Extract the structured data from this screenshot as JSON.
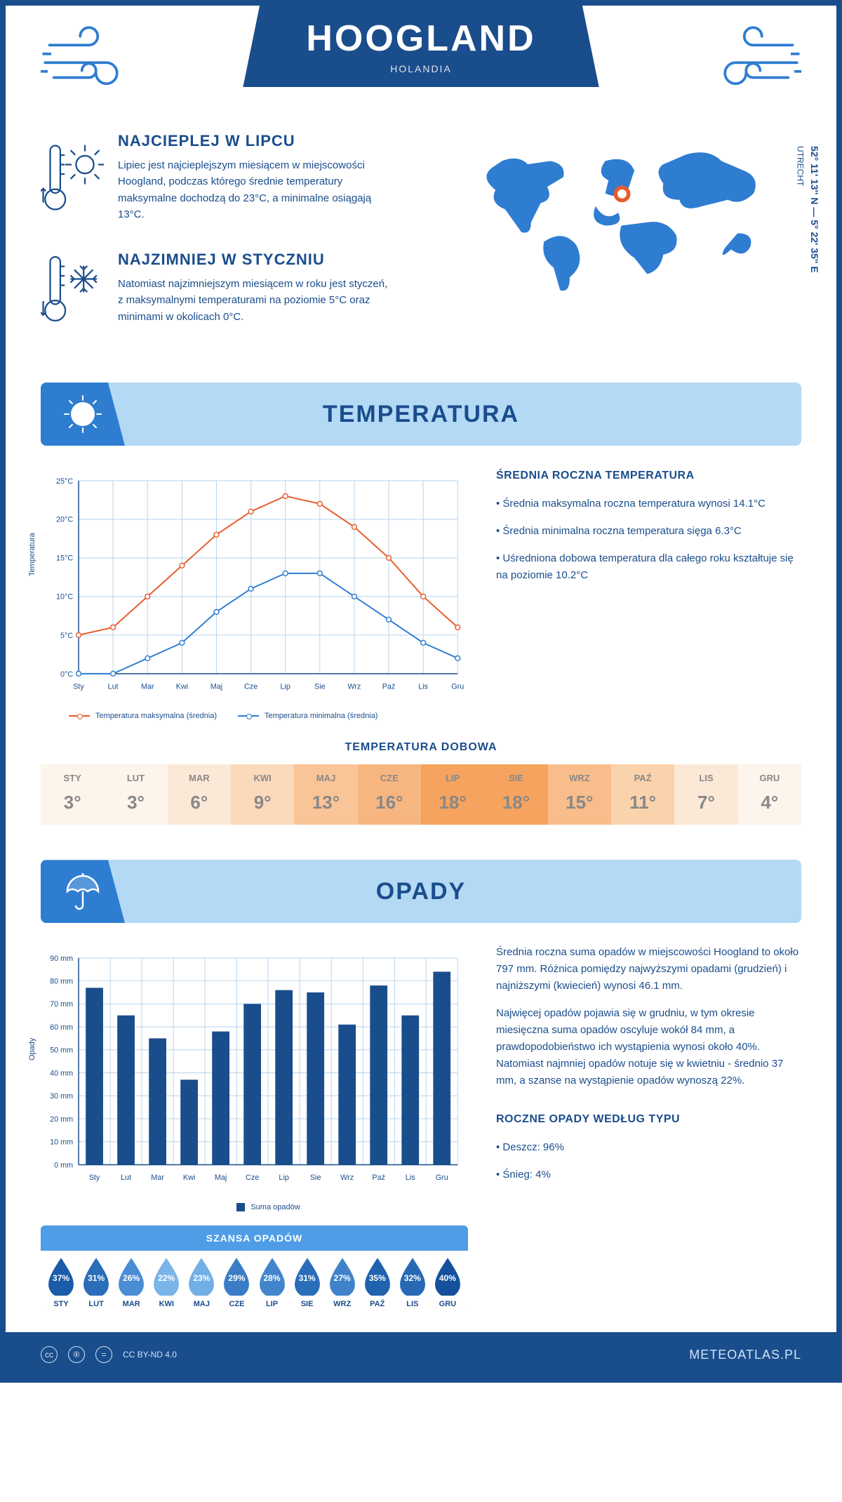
{
  "header": {
    "city": "HOOGLAND",
    "country": "HOLANDIA"
  },
  "coords": {
    "lat": "52° 11' 13'' N — 5° 22' 35'' E",
    "region": "UTRECHT"
  },
  "facts": {
    "hot": {
      "title": "NAJCIEPLEJ W LIPCU",
      "text": "Lipiec jest najcieplejszym miesiącem w miejscowości Hoogland, podczas którego średnie temperatury maksymalne dochodzą do 23°C, a minimalne osiągają 13°C."
    },
    "cold": {
      "title": "NAJZIMNIEJ W STYCZNIU",
      "text": "Natomiast najzimniejszym miesiącem w roku jest styczeń, z maksymalnymi temperaturami na poziomie 5°C oraz minimami w okolicach 0°C."
    }
  },
  "temp_section": {
    "title": "TEMPERATURA",
    "chart": {
      "months": [
        "Sty",
        "Lut",
        "Mar",
        "Kwi",
        "Maj",
        "Cze",
        "Lip",
        "Sie",
        "Wrz",
        "Paź",
        "Lis",
        "Gru"
      ],
      "max": [
        5,
        6,
        10,
        14,
        18,
        21,
        23,
        22,
        19,
        15,
        10,
        6
      ],
      "min": [
        0,
        0,
        2,
        4,
        8,
        11,
        13,
        13,
        10,
        7,
        4,
        2
      ],
      "ylim": [
        0,
        25
      ],
      "ystep": 5,
      "max_color": "#e85c2c",
      "min_color": "#2e7dd1",
      "grid_color": "#b8d4ec",
      "axis_color": "#1a4d8c",
      "ylabel": "Temperatura",
      "legend_max": "Temperatura maksymalna (średnia)",
      "legend_min": "Temperatura minimalna (średnia)"
    },
    "side_title": "ŚREDNIA ROCZNA TEMPERATURA",
    "bullets": [
      "Średnia maksymalna roczna temperatura wynosi 14.1°C",
      "Średnia minimalna roczna temperatura sięga 6.3°C",
      "Uśredniona dobowa temperatura dla całego roku kształtuje się na poziomie 10.2°C"
    ],
    "daily": {
      "title": "TEMPERATURA DOBOWA",
      "months": [
        "STY",
        "LUT",
        "MAR",
        "KWI",
        "MAJ",
        "CZE",
        "LIP",
        "SIE",
        "WRZ",
        "PAŹ",
        "LIS",
        "GRU"
      ],
      "values": [
        "3°",
        "3°",
        "6°",
        "9°",
        "13°",
        "16°",
        "18°",
        "18°",
        "15°",
        "11°",
        "7°",
        "4°"
      ],
      "colors": [
        "#fdf4eb",
        "#fdf4eb",
        "#fce8d7",
        "#fbd9bb",
        "#f9c497",
        "#f7b67f",
        "#f5a35e",
        "#f5a35e",
        "#f8bd8b",
        "#fad2ab",
        "#fce8d7",
        "#fdf4eb"
      ]
    }
  },
  "rain_section": {
    "title": "OPADY",
    "chart": {
      "months": [
        "Sty",
        "Lut",
        "Mar",
        "Kwi",
        "Maj",
        "Cze",
        "Lip",
        "Sie",
        "Wrz",
        "Paź",
        "Lis",
        "Gru"
      ],
      "values": [
        77,
        65,
        55,
        37,
        58,
        70,
        76,
        75,
        61,
        78,
        65,
        84
      ],
      "ylim": [
        0,
        90
      ],
      "ystep": 10,
      "bar_color": "#1a4d8c",
      "grid_color": "#b8d4ec",
      "ylabel": "Opady",
      "legend": "Suma opadów"
    },
    "text1": "Średnia roczna suma opadów w miejscowości Hoogland to około 797 mm. Różnica pomiędzy najwyższymi opadami (grudzień) i najniższymi (kwiecień) wynosi 46.1 mm.",
    "text2": "Najwięcej opadów pojawia się w grudniu, w tym okresie miesięczna suma opadów oscyluje wokół 84 mm, a prawdopodobieństwo ich wystąpienia wynosi około 40%. Natomiast najmniej opadów notuje się w kwietniu - średnio 37 mm, a szanse na wystąpienie opadów wynoszą 22%.",
    "chance": {
      "title": "SZANSA OPADÓW",
      "months": [
        "STY",
        "LUT",
        "MAR",
        "KWI",
        "MAJ",
        "CZE",
        "LIP",
        "SIE",
        "WRZ",
        "PAŹ",
        "LIS",
        "GRU"
      ],
      "pct": [
        "37%",
        "31%",
        "26%",
        "22%",
        "23%",
        "29%",
        "28%",
        "31%",
        "27%",
        "35%",
        "32%",
        "40%"
      ],
      "colors": [
        "#1a5ca8",
        "#2a6db8",
        "#4a8dd4",
        "#7ab4e8",
        "#72afe6",
        "#3a7dc6",
        "#4285cc",
        "#2a6db8",
        "#3f82ca",
        "#1f62ae",
        "#2769b4",
        "#14509c"
      ]
    },
    "types": {
      "title": "ROCZNE OPADY WEDŁUG TYPU",
      "items": [
        "Deszcz: 96%",
        "Śnieg: 4%"
      ]
    }
  },
  "footer": {
    "license": "CC BY-ND 4.0",
    "site": "METEOATLAS.PL"
  }
}
